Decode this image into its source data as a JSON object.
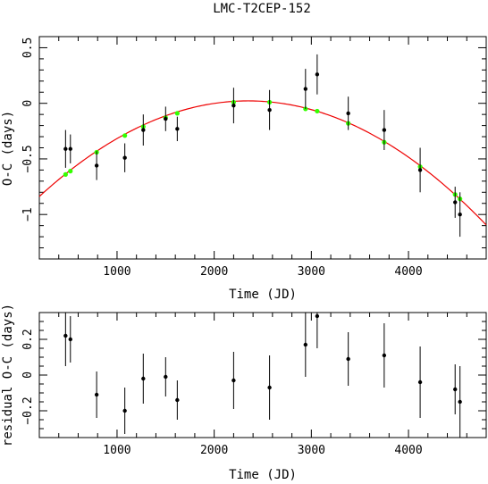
{
  "chart_data": [
    {
      "type": "scatter",
      "title": "LMC-T2CEP-152",
      "xlabel": "Time (JD)",
      "ylabel": "O-C (days)",
      "xlim": [
        200,
        4800
      ],
      "ylim": [
        -1.4,
        0.6
      ],
      "xticks": [
        1000,
        2000,
        3000,
        4000
      ],
      "yticks": [
        -1,
        -0.5,
        0,
        0.5
      ],
      "ytick_labels": [
        "−1",
        "−0.5",
        "0",
        "0.5"
      ],
      "series": [
        {
          "role": "observations",
          "color": "#000000",
          "x": [
            470,
            520,
            790,
            1080,
            1270,
            1500,
            1620,
            2200,
            2570,
            2940,
            3060,
            3380,
            3750,
            4120,
            4480,
            4530
          ],
          "y": [
            -0.41,
            -0.41,
            -0.56,
            -0.49,
            -0.24,
            -0.14,
            -0.23,
            -0.02,
            -0.06,
            0.13,
            0.26,
            -0.09,
            -0.24,
            -0.6,
            -0.89,
            -1.0
          ],
          "yerr": [
            0.17,
            0.13,
            0.13,
            0.13,
            0.14,
            0.11,
            0.11,
            0.16,
            0.18,
            0.18,
            0.18,
            0.15,
            0.18,
            0.2,
            0.14,
            0.2
          ]
        },
        {
          "role": "model-points",
          "color": "#33ff00",
          "x": [
            470,
            520,
            790,
            1080,
            1270,
            1500,
            1620,
            2200,
            2570,
            2940,
            3060,
            3380,
            3750,
            4120,
            4480,
            4530
          ],
          "y": [
            -0.64,
            -0.61,
            -0.44,
            -0.29,
            -0.21,
            -0.13,
            -0.09,
            0.01,
            0.01,
            -0.05,
            -0.07,
            -0.18,
            -0.35,
            -0.57,
            -0.82,
            -0.86
          ]
        }
      ],
      "fit_curve": {
        "color": "#ee0000",
        "vertex_x": 2350,
        "vertex_y": 0.022,
        "curvature": -1.86e-07
      }
    },
    {
      "type": "scatter",
      "title": "",
      "xlabel": "Time (JD)",
      "ylabel": "residual O-C (days)",
      "xlim": [
        200,
        4800
      ],
      "ylim": [
        -0.35,
        0.35
      ],
      "xticks": [
        1000,
        2000,
        3000,
        4000
      ],
      "yticks": [
        -0.2,
        0,
        0.2
      ],
      "ytick_labels": [
        "−0.2",
        "0",
        "0.2"
      ],
      "series": [
        {
          "role": "residuals",
          "color": "#000000",
          "x": [
            470,
            520,
            790,
            1080,
            1270,
            1500,
            1620,
            2200,
            2570,
            2940,
            3060,
            3380,
            3750,
            4120,
            4480,
            4530
          ],
          "y": [
            0.22,
            0.2,
            -0.11,
            -0.2,
            -0.02,
            -0.01,
            -0.14,
            -0.03,
            -0.07,
            0.17,
            0.33,
            0.09,
            0.11,
            -0.04,
            -0.08,
            -0.15
          ],
          "yerr": [
            0.17,
            0.13,
            0.13,
            0.13,
            0.14,
            0.11,
            0.11,
            0.16,
            0.18,
            0.18,
            0.18,
            0.15,
            0.18,
            0.2,
            0.14,
            0.2
          ]
        }
      ]
    }
  ]
}
